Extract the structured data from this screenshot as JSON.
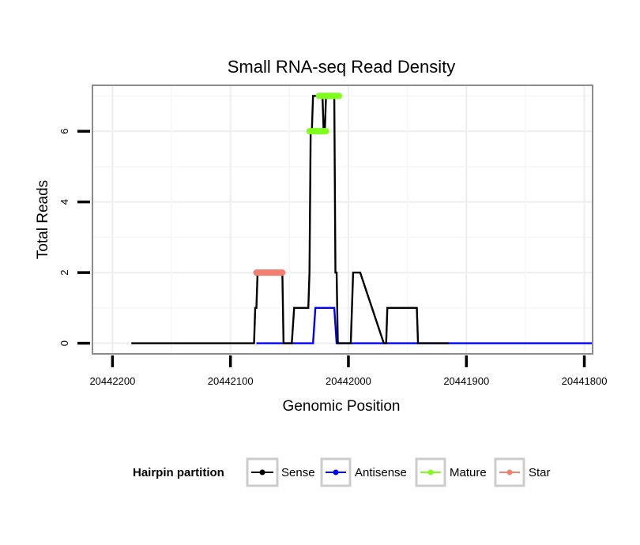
{
  "chart_data": {
    "type": "line",
    "title": "Small RNA-seq Read Density",
    "xlabel": "Genomic Position",
    "ylabel": "Total Reads",
    "x_reversed": true,
    "xlim": [
      20442217,
      20441793
    ],
    "ylim": [
      -0.3,
      7.3
    ],
    "x_ticks": [
      20442200,
      20442100,
      20442000,
      20441900,
      20441800
    ],
    "x_tick_labels": [
      "20442200",
      "20442100",
      "20442000",
      "20441900",
      "20441800"
    ],
    "y_ticks": [
      0,
      2,
      4,
      6
    ],
    "y_tick_labels": [
      "0",
      "2",
      "4",
      "6"
    ],
    "grid": true,
    "series": [
      {
        "name": "Sense",
        "color": "#000000",
        "x": [
          20442184,
          20442080,
          20442079,
          20442078,
          20442077,
          20442056,
          20442055,
          20442048,
          20442046,
          20442045,
          20442034,
          20442033,
          20442032,
          20442031,
          20442030,
          20442022,
          20442021,
          20442020,
          20442019,
          20442018,
          20442012,
          20442011,
          20442010,
          20442009,
          20442008,
          20441998,
          20441997,
          20441996,
          20441995,
          20441990,
          20441970,
          20441969,
          20441968,
          20441967,
          20441942,
          20441941,
          20441916,
          20441915
        ],
        "values": [
          0,
          0,
          1,
          1,
          2,
          2,
          0,
          0,
          1,
          1,
          1,
          2,
          6,
          6,
          7,
          7,
          6,
          6,
          7,
          7,
          7,
          2,
          2,
          0,
          0,
          0,
          1,
          2,
          2,
          2,
          0,
          0,
          0,
          1,
          1,
          0,
          0,
          0
        ]
      },
      {
        "name": "Antisense",
        "color": "#0000ff",
        "x": [
          20442078,
          20442030,
          20442028,
          20442027,
          20442012,
          20442010,
          20441793
        ],
        "values": [
          0,
          0,
          1,
          1,
          1,
          0,
          0
        ]
      },
      {
        "name": "Mature",
        "color": "#7ffd1d",
        "segments": [
          {
            "x": [
              20442033,
              20442019
            ],
            "values": [
              6,
              6
            ]
          },
          {
            "x": [
              20442025,
              20442008
            ],
            "values": [
              7,
              7
            ]
          }
        ]
      },
      {
        "name": "Star",
        "color": "#f37f73",
        "segments": [
          {
            "x": [
              20442078,
              20442056
            ],
            "values": [
              2,
              2
            ]
          }
        ]
      }
    ],
    "legend": {
      "title": "Hairpin partition",
      "position": "bottom",
      "entries": [
        "Sense",
        "Antisense",
        "Mature",
        "Star"
      ]
    }
  }
}
